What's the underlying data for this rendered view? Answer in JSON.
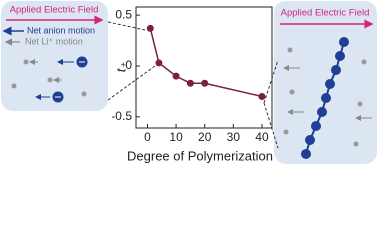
{
  "chart_data": {
    "type": "line",
    "xlabel": "Degree of Polymerization",
    "ylabel": "t₊",
    "x": [
      1,
      4,
      10,
      15,
      20,
      40
    ],
    "values": [
      0.37,
      0.03,
      -0.1,
      -0.17,
      -0.17,
      -0.3
    ],
    "color": "#7b1f45",
    "xlim": [
      -4,
      43.5
    ],
    "ylim": [
      -0.61,
      0.58
    ],
    "xticks": [
      0,
      10,
      20,
      30,
      40
    ],
    "yticks": [
      0.5,
      0,
      -0.5
    ]
  },
  "left_panel": {
    "title": "Applied Electric Field",
    "legend": [
      "Net anion motion",
      "Net Li⁺ motion"
    ]
  },
  "right_panel": {
    "title": "Applied Electric Field"
  }
}
